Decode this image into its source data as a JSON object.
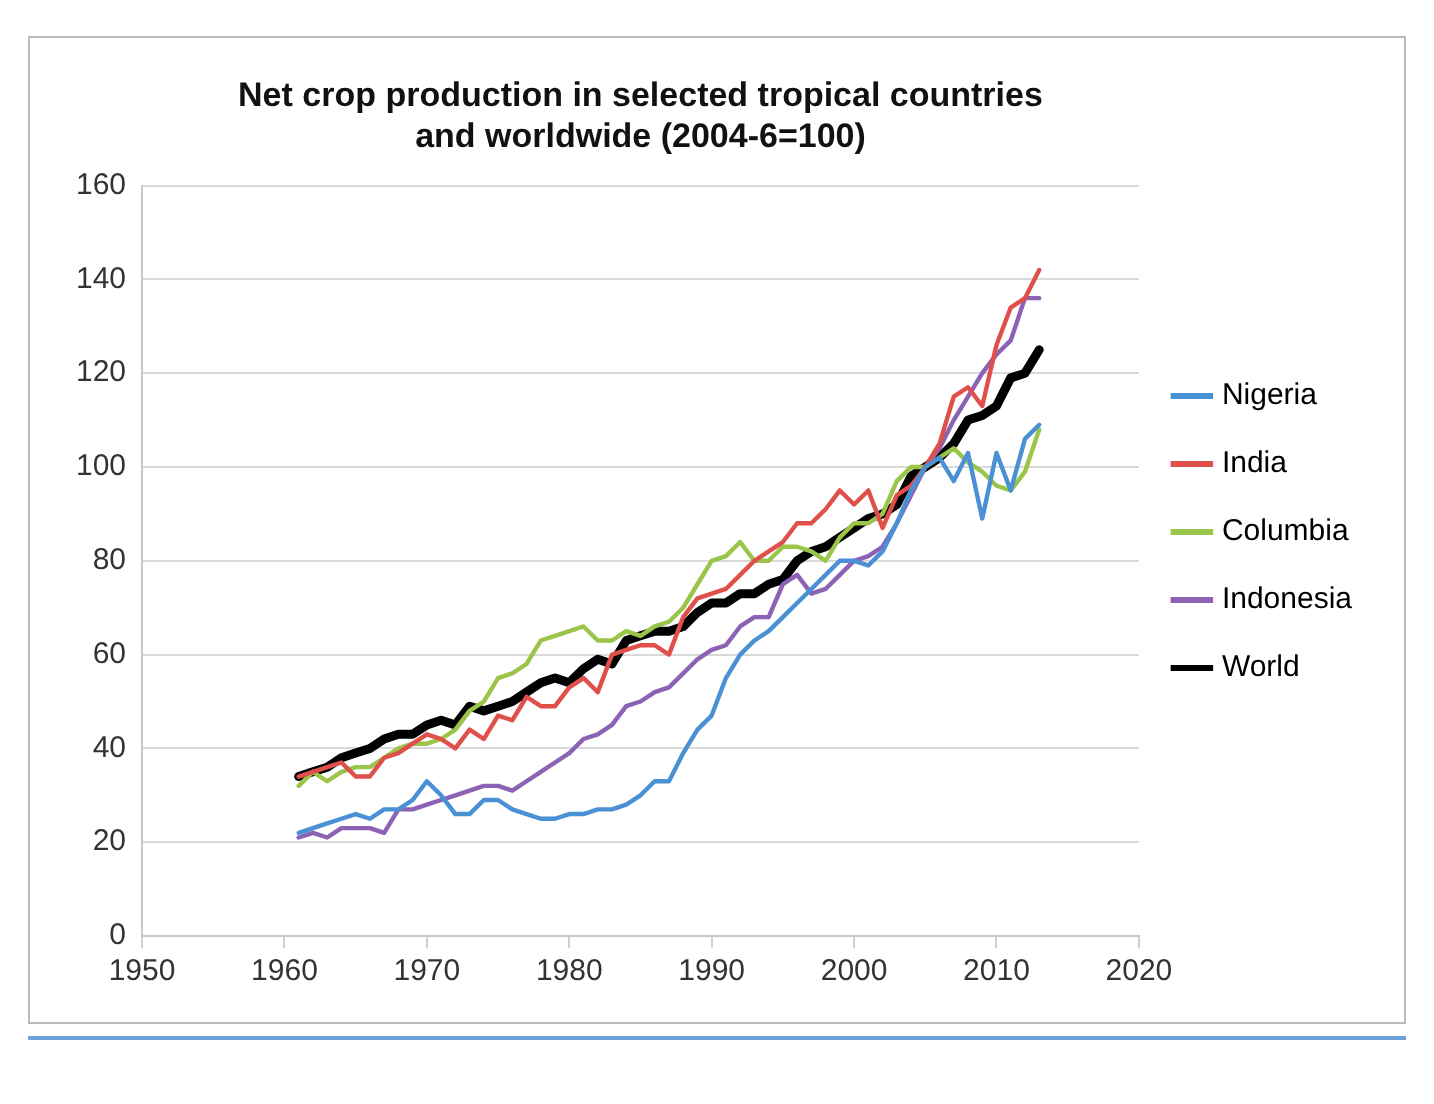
{
  "chart_data": {
    "type": "line",
    "title": "Net crop production in selected tropical countries and worldwide (2004-6=100)",
    "x": [
      1961,
      1962,
      1963,
      1964,
      1965,
      1966,
      1967,
      1968,
      1969,
      1970,
      1971,
      1972,
      1973,
      1974,
      1975,
      1976,
      1977,
      1978,
      1979,
      1980,
      1981,
      1982,
      1983,
      1984,
      1985,
      1986,
      1987,
      1988,
      1989,
      1990,
      1991,
      1992,
      1993,
      1994,
      1995,
      1996,
      1997,
      1998,
      1999,
      2000,
      2001,
      2002,
      2003,
      2004,
      2005,
      2006,
      2007,
      2008,
      2009,
      2010,
      2011,
      2012,
      2013
    ],
    "series": [
      {
        "name": "Nigeria",
        "color": "#4a90d4",
        "values": [
          22,
          23,
          24,
          25,
          26,
          25,
          27,
          27,
          29,
          33,
          30,
          26,
          26,
          29,
          29,
          27,
          26,
          25,
          25,
          26,
          26,
          27,
          27,
          28,
          30,
          33,
          33,
          39,
          44,
          47,
          55,
          60,
          63,
          65,
          68,
          71,
          74,
          77,
          80,
          80,
          79,
          82,
          88,
          95,
          100,
          102,
          97,
          103,
          89,
          103,
          95,
          106,
          109
        ]
      },
      {
        "name": "India",
        "color": "#e0504a",
        "values": [
          34,
          35,
          36,
          37,
          34,
          34,
          38,
          39,
          41,
          43,
          42,
          40,
          44,
          42,
          47,
          46,
          51,
          49,
          49,
          53,
          55,
          52,
          60,
          61,
          62,
          62,
          60,
          68,
          72,
          73,
          74,
          77,
          80,
          82,
          84,
          88,
          88,
          91,
          95,
          92,
          95,
          87,
          94,
          96,
          100,
          105,
          115,
          117,
          113,
          126,
          134,
          136,
          142
        ]
      },
      {
        "name": "Columbia",
        "color": "#9bc44a",
        "values": [
          32,
          35,
          33,
          35,
          36,
          36,
          38,
          40,
          41,
          41,
          42,
          44,
          48,
          50,
          55,
          56,
          58,
          63,
          64,
          65,
          66,
          63,
          63,
          65,
          64,
          66,
          67,
          70,
          75,
          80,
          81,
          84,
          80,
          80,
          83,
          83,
          82,
          80,
          85,
          88,
          88,
          90,
          97,
          100,
          100,
          102,
          104,
          101,
          99,
          96,
          95,
          99,
          108
        ]
      },
      {
        "name": "Indonesia",
        "color": "#8c62b4",
        "values": [
          21,
          22,
          21,
          23,
          23,
          23,
          22,
          27,
          27,
          28,
          29,
          30,
          31,
          32,
          32,
          31,
          33,
          35,
          37,
          39,
          42,
          43,
          45,
          49,
          50,
          52,
          53,
          56,
          59,
          61,
          62,
          66,
          68,
          68,
          75,
          77,
          73,
          74,
          77,
          80,
          81,
          83,
          88,
          94,
          100,
          104,
          110,
          115,
          120,
          124,
          127,
          136,
          136
        ]
      },
      {
        "name": "World",
        "color": "#000000",
        "values": [
          34,
          35,
          36,
          38,
          39,
          40,
          42,
          43,
          43,
          45,
          46,
          45,
          49,
          48,
          49,
          50,
          52,
          54,
          55,
          54,
          57,
          59,
          58,
          63,
          64,
          65,
          65,
          66,
          69,
          71,
          71,
          73,
          73,
          75,
          76,
          80,
          82,
          83,
          85,
          87,
          89,
          90,
          92,
          98,
          100,
          102,
          105,
          110,
          111,
          113,
          119,
          120,
          125
        ]
      }
    ],
    "xlim": [
      1950,
      2020
    ],
    "xticks": [
      1950,
      1960,
      1970,
      1980,
      1990,
      2000,
      2010,
      2020
    ],
    "ylim": [
      0,
      160
    ],
    "yticks": [
      0,
      20,
      40,
      60,
      80,
      100,
      120,
      140,
      160
    ],
    "grid": "y",
    "legend": "right",
    "marker": "none",
    "line_style": "solid"
  }
}
